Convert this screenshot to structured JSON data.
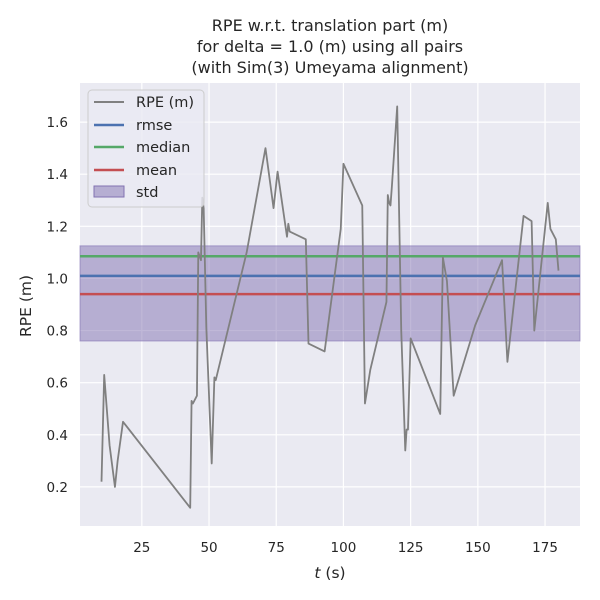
{
  "chart_data": {
    "type": "line",
    "title": [
      "RPE w.r.t. translation part (m)",
      "for delta = 1.0 (m) using all pairs",
      "(with Sim(3) Umeyama alignment)"
    ],
    "xlabel_italic": "t",
    "xlabel_rest": " (s)",
    "ylabel": "RPE (m)",
    "xlim": [
      2,
      188
    ],
    "ylim": [
      0.05,
      1.75
    ],
    "xticks": [
      25,
      50,
      75,
      100,
      125,
      150,
      175
    ],
    "yticks": [
      0.2,
      0.4,
      0.6,
      0.8,
      1.0,
      1.2,
      1.4,
      1.6
    ],
    "xtick_labels": [
      "25",
      "50",
      "75",
      "100",
      "125",
      "150",
      "175"
    ],
    "ytick_labels": [
      "0.2",
      "0.4",
      "0.6",
      "0.8",
      "1.0",
      "1.2",
      "1.4",
      "1.6"
    ],
    "grid": true,
    "legend_position": "top-left",
    "series": [
      {
        "name": "RPE (m)",
        "color": "#808080",
        "x": [
          10.0,
          11.0,
          13.0,
          15.0,
          16.0,
          18.0,
          43.0,
          43.5,
          44.0,
          45.5,
          46.0,
          47.0,
          47.5,
          48.0,
          49.0,
          51.0,
          52.0,
          52.5,
          64.0,
          71.0,
          74.0,
          75.5,
          79.0,
          79.5,
          80.0,
          86.0,
          87.0,
          93.0,
          99.0,
          100.0,
          107.0,
          108.0,
          110.0,
          116.0,
          116.5,
          117.0,
          117.5,
          118.0,
          120.0,
          121.5,
          123.0,
          123.5,
          124.0,
          125.0,
          136.0,
          137.0,
          138.5,
          141.0,
          149.0,
          159.0,
          161.0,
          167.0,
          170.0,
          171.0,
          176.0,
          177.0,
          179.0,
          180.0
        ],
        "values": [
          0.22,
          0.63,
          0.36,
          0.2,
          0.3,
          0.45,
          0.12,
          0.53,
          0.52,
          0.55,
          1.1,
          1.07,
          1.31,
          1.27,
          0.81,
          0.29,
          0.62,
          0.61,
          1.1,
          1.5,
          1.27,
          1.41,
          1.16,
          1.21,
          1.18,
          1.15,
          0.75,
          0.72,
          1.19,
          1.44,
          1.28,
          0.52,
          0.65,
          0.91,
          1.32,
          1.29,
          1.28,
          1.35,
          1.66,
          0.8,
          0.34,
          0.42,
          0.42,
          0.77,
          0.48,
          1.08,
          0.99,
          0.55,
          0.82,
          1.07,
          0.68,
          1.24,
          1.22,
          0.8,
          1.29,
          1.19,
          1.15,
          1.03
        ]
      },
      {
        "name": "rmse",
        "color": "#4c72b0",
        "value": 1.01
      },
      {
        "name": "median",
        "color": "#55a868",
        "value": 1.085
      },
      {
        "name": "mean",
        "color": "#c44e52",
        "value": 0.94
      },
      {
        "name": "std",
        "color": "#8172b2",
        "band": [
          0.76,
          1.125
        ]
      }
    ]
  },
  "colors": {
    "plot_background": "#eaeaf2",
    "grid": "#ffffff",
    "std_fill": "#8172b2"
  }
}
